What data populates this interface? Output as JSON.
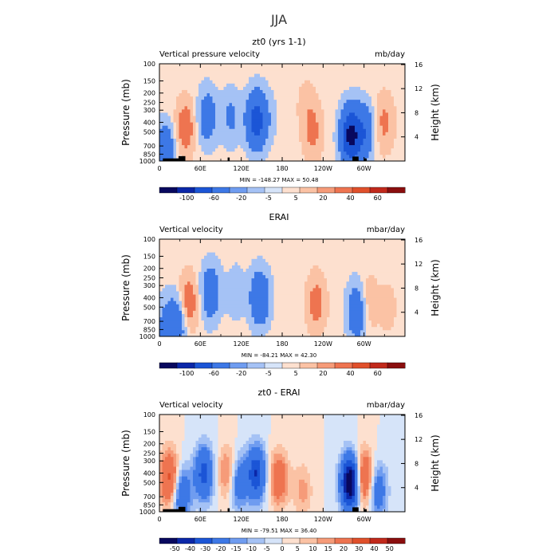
{
  "figure": {
    "title": "JJA",
    "colors": {
      "d6": "#08085e",
      "d5": "#0b27a8",
      "d4": "#1b55d6",
      "d3": "#3d78e6",
      "d2": "#6f9cf0",
      "d1": "#a5c2f5",
      "d0": "#d6e4f9",
      "u0": "#fde0cf",
      "u1": "#fbc2a4",
      "u2": "#f69b79",
      "u3": "#ee7450",
      "u4": "#e0502b",
      "u5": "#c1291b",
      "u6": "#8a0e0e",
      "terrain": "#000000"
    }
  },
  "chart_data": [
    {
      "type": "heatmap",
      "title": "zt0 (yrs 1-1)",
      "left_label": "Vertical pressure velocity",
      "right_label": "mb/day",
      "ylabel": "Pressure (mb)",
      "ylabel_right": "Height (km)",
      "x_ticks": [
        "0",
        "60E",
        "120E",
        "180",
        "120W",
        "60W"
      ],
      "y_ticks": [
        "100",
        "150",
        "200",
        "250",
        "300",
        "400",
        "500",
        "700",
        "850",
        "1000"
      ],
      "y_right_ticks": [
        "16",
        "12",
        "8",
        "4"
      ],
      "y_scale": "log",
      "ylim": [
        1000,
        100
      ],
      "xlim_lon": [
        0,
        360
      ],
      "stats": "MIN = -148.27  MAX = 50.48",
      "colorbar_labels": [
        "-100",
        "-60",
        "-20",
        "-5",
        "5",
        "20",
        "40",
        "60"
      ],
      "levels": [
        -100,
        -60,
        -20,
        -5,
        5,
        20,
        40,
        60
      ],
      "features": [
        {
          "lon": 8,
          "p": 850,
          "value": -60
        },
        {
          "lon": 38,
          "p": 450,
          "value": 35
        },
        {
          "lon": 70,
          "p": 350,
          "value": -40
        },
        {
          "lon": 105,
          "p": 350,
          "value": -25
        },
        {
          "lon": 142,
          "p": 380,
          "value": -80
        },
        {
          "lon": 160,
          "p": 350,
          "value": -10
        },
        {
          "lon": 225,
          "p": 500,
          "value": 25
        },
        {
          "lon": 215,
          "p": 260,
          "value": 10
        },
        {
          "lon": 280,
          "p": 550,
          "value": -110
        },
        {
          "lon": 300,
          "p": 500,
          "value": -50
        },
        {
          "lon": 330,
          "p": 400,
          "value": 25
        }
      ],
      "terrain": [
        {
          "lon0": 5,
          "lon1": 28,
          "p": 940
        },
        {
          "lon0": 28,
          "lon1": 38,
          "p": 890
        },
        {
          "lon0": 100,
          "lon1": 103,
          "p": 920
        },
        {
          "lon0": 283,
          "lon1": 292,
          "p": 900
        },
        {
          "lon0": 300,
          "lon1": 304,
          "p": 940
        }
      ]
    },
    {
      "type": "heatmap",
      "title": "ERAI",
      "left_label": "Vertical velocity",
      "right_label": "mbar/day",
      "ylabel": "Pressure (mb)",
      "ylabel_right": "Height (km)",
      "x_ticks": [
        "0",
        "60E",
        "120E",
        "180",
        "120W",
        "60W"
      ],
      "y_ticks": [
        "100",
        "150",
        "200",
        "250",
        "300",
        "400",
        "500",
        "700",
        "850",
        "1000"
      ],
      "y_right_ticks": [
        "16",
        "12",
        "8",
        "4"
      ],
      "y_scale": "log",
      "ylim": [
        1000,
        100
      ],
      "xlim_lon": [
        0,
        360
      ],
      "stats": "MIN = -84.21  MAX = 42.30",
      "colorbar_labels": [
        "-100",
        "-60",
        "-20",
        "-5",
        "5",
        "20",
        "40",
        "60"
      ],
      "levels": [
        -100,
        -60,
        -20,
        -5,
        5,
        20,
        40,
        60
      ],
      "features": [
        {
          "lon": 10,
          "p": 800,
          "value": -30
        },
        {
          "lon": 27,
          "p": 700,
          "value": -45
        },
        {
          "lon": 42,
          "p": 450,
          "value": 40
        },
        {
          "lon": 75,
          "p": 350,
          "value": -45
        },
        {
          "lon": 112,
          "p": 350,
          "value": -15
        },
        {
          "lon": 147,
          "p": 400,
          "value": -55
        },
        {
          "lon": 230,
          "p": 450,
          "value": 30
        },
        {
          "lon": 290,
          "p": 550,
          "value": -50
        },
        {
          "lon": 305,
          "p": 450,
          "value": 20
        },
        {
          "lon": 335,
          "p": 500,
          "value": 10
        }
      ],
      "terrain": []
    },
    {
      "type": "heatmap",
      "title": "zt0 - ERAI",
      "left_label": "Vertical velocity",
      "right_label": "mbar/day",
      "ylabel": "Pressure (mb)",
      "ylabel_right": "Height (km)",
      "x_ticks": [
        "0",
        "60E",
        "120E",
        "180",
        "120W",
        "60W"
      ],
      "y_ticks": [
        "100",
        "150",
        "200",
        "250",
        "300",
        "400",
        "500",
        "700",
        "850",
        "1000"
      ],
      "y_right_ticks": [
        "16",
        "12",
        "8",
        "4"
      ],
      "y_scale": "log",
      "ylim": [
        1000,
        100
      ],
      "xlim_lon": [
        0,
        360
      ],
      "stats": "MIN = -79.51  MAX = 36.40",
      "colorbar_labels": [
        "-50",
        "-40",
        "-30",
        "-20",
        "-15",
        "-10",
        "-5",
        "0",
        "5",
        "10",
        "15",
        "20",
        "30",
        "40",
        "50"
      ],
      "levels": [
        -50,
        -40,
        -30,
        -20,
        -15,
        -10,
        -5,
        0,
        5,
        10,
        15,
        20,
        30,
        40,
        50
      ],
      "features": [
        {
          "lon": 15,
          "p": 450,
          "value": 35
        },
        {
          "lon": 32,
          "p": 650,
          "value": -30
        },
        {
          "lon": 65,
          "p": 400,
          "value": -35
        },
        {
          "lon": 100,
          "p": 400,
          "value": 20
        },
        {
          "lon": 115,
          "p": 500,
          "value": -25
        },
        {
          "lon": 142,
          "p": 400,
          "value": -40
        },
        {
          "lon": 175,
          "p": 450,
          "value": 25
        },
        {
          "lon": 210,
          "p": 600,
          "value": 12
        },
        {
          "lon": 280,
          "p": 500,
          "value": -65
        },
        {
          "lon": 300,
          "p": 450,
          "value": 35
        },
        {
          "lon": 320,
          "p": 600,
          "value": -25
        }
      ],
      "terrain": [
        {
          "lon0": 5,
          "lon1": 28,
          "p": 940
        },
        {
          "lon0": 28,
          "lon1": 38,
          "p": 890
        },
        {
          "lon0": 100,
          "lon1": 103,
          "p": 920
        },
        {
          "lon0": 283,
          "lon1": 292,
          "p": 900
        },
        {
          "lon0": 300,
          "lon1": 304,
          "p": 940
        }
      ]
    }
  ]
}
